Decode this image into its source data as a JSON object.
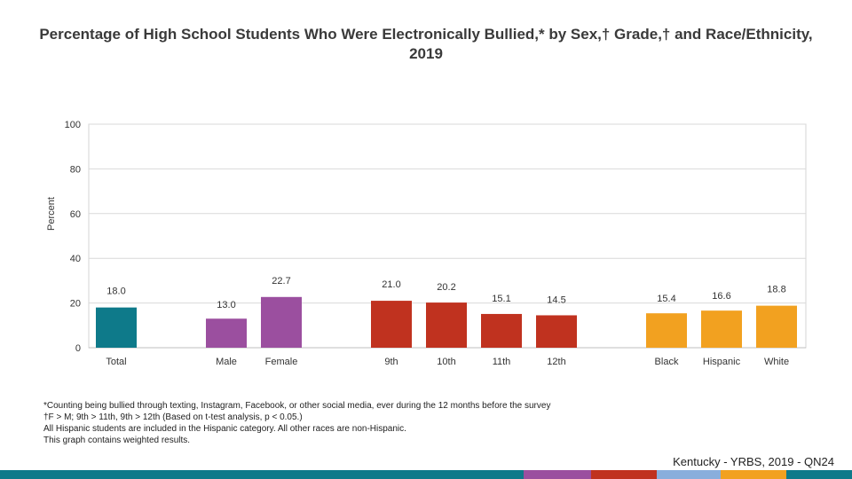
{
  "title": "Percentage of High School Students Who Were Electronically Bullied,* by Sex,† Grade,† and Race/Ethnicity, 2019",
  "chart_data": {
    "type": "bar",
    "ylabel": "Percent",
    "xlabel": "",
    "ylim": [
      0,
      100
    ],
    "yticks": [
      0,
      20,
      40,
      60,
      80,
      100
    ],
    "grid": true,
    "categories": [
      "Total",
      "Male",
      "Female",
      "9th",
      "10th",
      "11th",
      "12th",
      "Black",
      "Hispanic",
      "White"
    ],
    "values": [
      18.0,
      13.0,
      22.7,
      21.0,
      20.2,
      15.1,
      14.5,
      15.4,
      16.6,
      18.8
    ],
    "value_labels": [
      "18.0",
      "13.0",
      "22.7",
      "21.0",
      "20.2",
      "15.1",
      "14.5",
      "15.4",
      "16.6",
      "18.8"
    ],
    "groups": [
      "total",
      "sex",
      "sex",
      "grade",
      "grade",
      "grade",
      "grade",
      "race",
      "race",
      "race"
    ],
    "colors": {
      "total": "#0e7a8a",
      "sex": "#9b4f9f",
      "grade": "#c0321f",
      "race": "#f2a120"
    }
  },
  "notes": [
    "*Counting being bullied through texting, Instagram, Facebook, or other social media, ever during the 12 months before the survey",
    "†F > M; 9th > 11th, 9th > 12th (Based on t-test analysis, p < 0.05.)",
    "All Hispanic students are included in the Hispanic category.  All other races are non-Hispanic.",
    "This graph contains weighted results."
  ],
  "footer": "Kentucky - YRBS, 2019 - QN24",
  "stripe_colors": [
    "#0e7a8a",
    "#9b4f9f",
    "#c0321f",
    "#89aedc",
    "#f2a120",
    "#0e7a8a"
  ]
}
